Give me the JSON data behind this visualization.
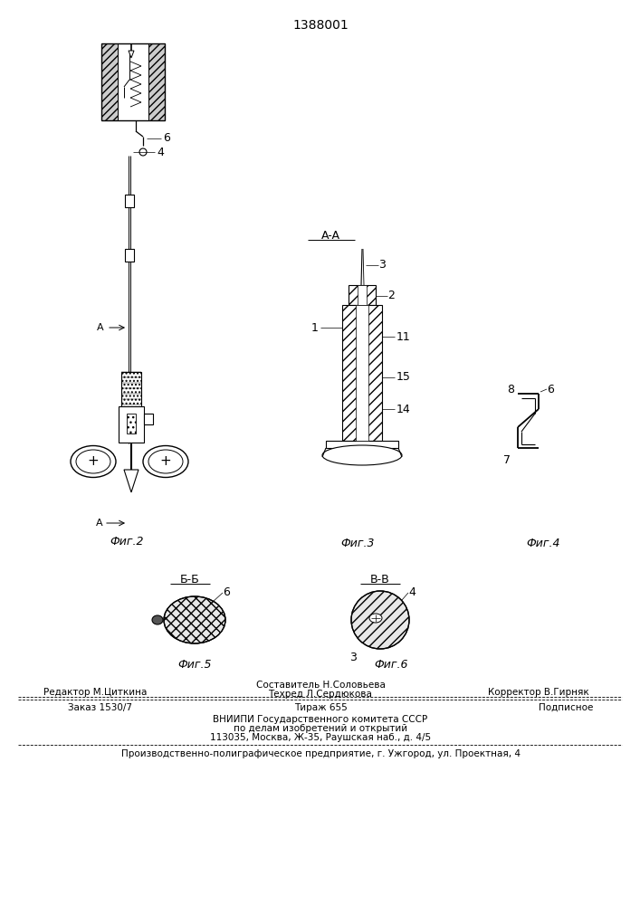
{
  "patent_number": "1388001",
  "bg": "#ffffff",
  "lc": "#000000",
  "tc": "#000000",
  "footer": {
    "editor": "Редактор М.Циткина",
    "composer": "Составитель Н.Соловьева",
    "techred": "Техред Л.Сердюкова",
    "corrector": "Корректор В.Гирняк",
    "order": "Заказ 1530/7",
    "tirazh": "Тираж 655",
    "podpisnoe": "Подписное",
    "vniipи1": "ВНИИПИ Государственного комитета СССР",
    "vniipи2": "по делам изобретений и открытий",
    "vniipи3": "113035, Москва, Ж-35, Раушская наб., д. 4/5",
    "bottom": "Производственно-полиграфическое предприятие, г. Ужгород, ул. Проектная, 4"
  }
}
